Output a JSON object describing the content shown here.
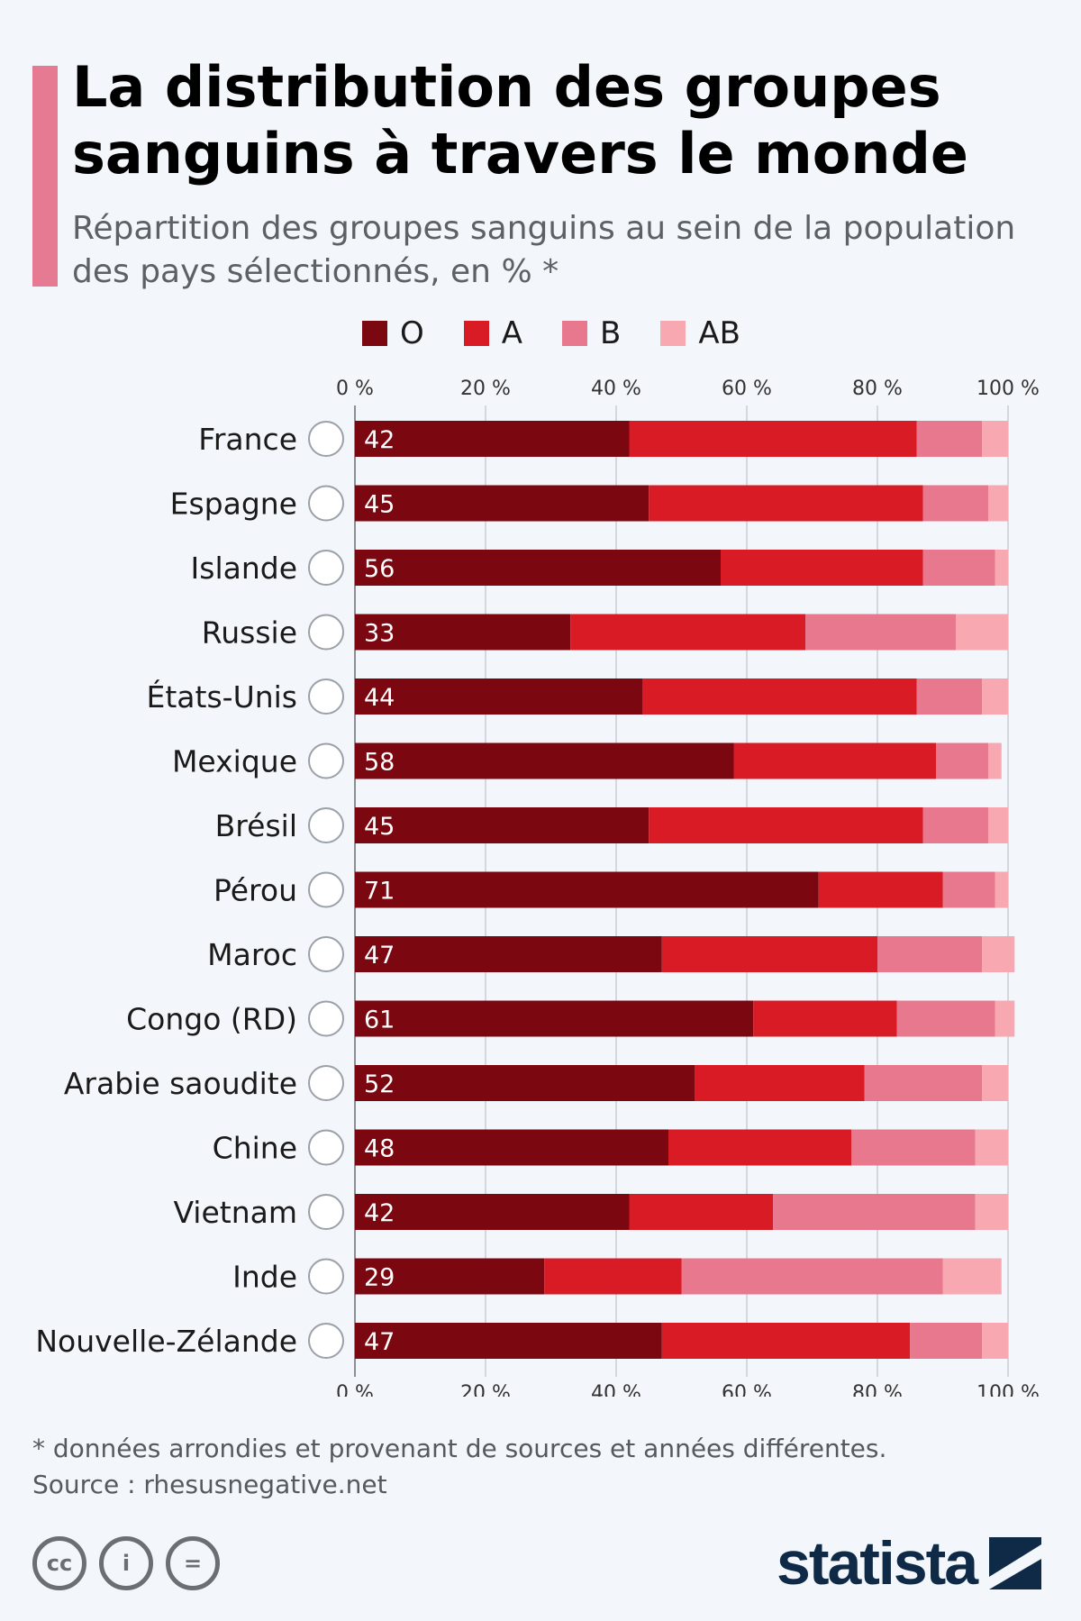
{
  "header": {
    "title_line1": "La distribution des groupes",
    "title_line2": "sanguins à travers le monde",
    "subtitle_line1": "Répartition des groupes sanguins au sein de la population",
    "subtitle_line2": "des pays sélectionnés, en % *"
  },
  "colors": {
    "O": "#7b0710",
    "A": "#d81b25",
    "B": "#e8788e",
    "AB": "#f7a8b1",
    "accent": "#e67a92",
    "brand": "#0f2a47"
  },
  "chart_data": {
    "type": "bar",
    "orientation": "horizontal",
    "stacked": true,
    "xlim": [
      0,
      100
    ],
    "ticks": [
      0,
      20,
      40,
      60,
      80,
      100
    ],
    "tick_labels": [
      "0 %",
      "20 %",
      "40 %",
      "60 %",
      "80 %",
      "100 %"
    ],
    "categories": [
      "France",
      "Espagne",
      "Islande",
      "Russie",
      "États-Unis",
      "Mexique",
      "Brésil",
      "Pérou",
      "Maroc",
      "Congo (RD)",
      "Arabie saoudite",
      "Chine",
      "Vietnam",
      "Inde",
      "Nouvelle-Zélande"
    ],
    "series": [
      {
        "name": "O",
        "values": [
          42,
          45,
          56,
          33,
          44,
          58,
          45,
          71,
          47,
          61,
          52,
          48,
          42,
          29,
          47
        ]
      },
      {
        "name": "A",
        "values": [
          44,
          42,
          31,
          36,
          42,
          31,
          42,
          19,
          33,
          22,
          26,
          28,
          22,
          21,
          38
        ]
      },
      {
        "name": "B",
        "values": [
          10,
          10,
          11,
          23,
          10,
          8,
          10,
          8,
          16,
          15,
          18,
          19,
          31,
          40,
          11
        ]
      },
      {
        "name": "AB",
        "values": [
          4,
          3,
          2,
          8,
          4,
          2,
          3,
          2,
          5,
          3,
          4,
          5,
          5,
          9,
          4
        ]
      }
    ],
    "data_labels_series": "O",
    "legend_position": "top"
  },
  "footer": {
    "note": "* données arrondies et provenant de sources et années différentes.",
    "source": "Source : rhesusnegative.net",
    "brand": "statista",
    "cc_labels": [
      "cc",
      "i",
      "="
    ]
  }
}
